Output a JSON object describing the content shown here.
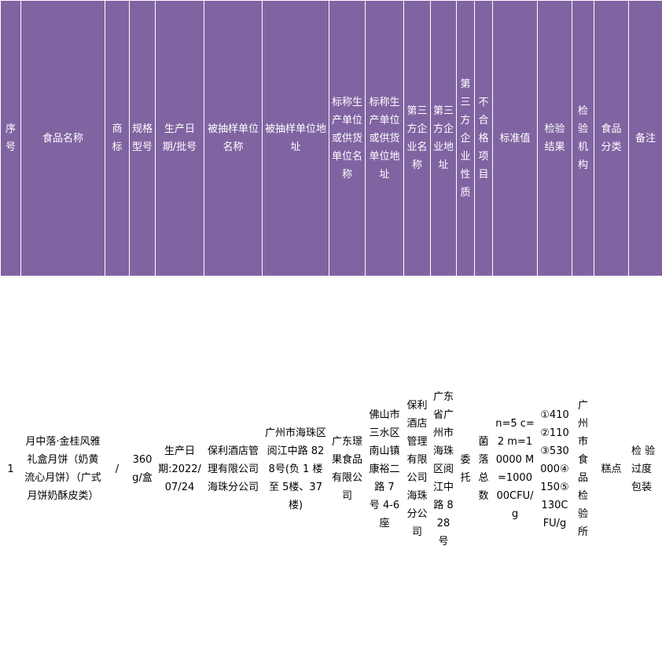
{
  "theme": {
    "header_bg": "#8064a2",
    "header_text": "#ffffff",
    "cell_border": "#d9d9d9"
  },
  "table": {
    "headers": [
      "序号",
      "食品名称",
      "商标",
      "规格型号",
      "生产日期/批号",
      "被抽样单位名称",
      "被抽样单位地址",
      "标称生产单位或供货单位名称",
      "标称生产单位或供货单位地址",
      "第三方企业名称",
      "第三方企业地址",
      "第三方企业性质",
      "不合格项目",
      "标准值",
      "检验结果",
      "检验机构",
      "食品分类",
      "备注"
    ],
    "rows": [
      [
        "1",
        "月中落·金桂风雅礼盒月饼（奶黄流心月饼）（广式月饼奶酥皮类）",
        "/",
        "360g/盒",
        "生产日期:2022/07/24",
        "保利酒店管理有限公司海珠分公司",
        "广州市海珠区阅江中路 828号(负 1 楼至 5楼、37 楼)",
        "广东璟果食品有限公司",
        "佛山市三水区南山镇康裕二路 7 号 4-6 座",
        "保利酒店管理有限公司海珠分公司",
        "广东省广州市海珠区阅江中路 828 号",
        "委托",
        "菌落总数",
        "n=5 c=2 m=10000 M=100000CFU/g",
        "①410②110③530000④150⑤130CFU/g",
        "广州市食品检验所",
        "糕点",
        "检 验 过度包装"
      ]
    ]
  }
}
